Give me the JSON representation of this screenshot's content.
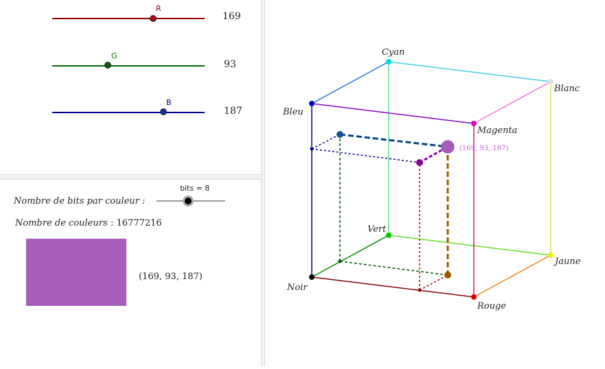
{
  "sliders": [
    {
      "letter": "R",
      "value": "169",
      "color": "#990000",
      "fraction": 0.663
    },
    {
      "letter": "G",
      "value": "93",
      "color": "#006600",
      "fraction": 0.365
    },
    {
      "letter": "B",
      "value": "187",
      "color": "#000099",
      "fraction": 0.733
    }
  ],
  "bits": {
    "label": "bits = 8",
    "caption": "Nombre de bits par couleur :",
    "value": 8
  },
  "colors_count": {
    "caption": "Nombre de couleurs",
    "value": ":  16777216"
  },
  "swatch": {
    "color": "#a95dbb",
    "label": "(169, 93, 187)"
  },
  "cube": {
    "labels": {
      "cyan": "Cyan",
      "blanc": "Blanc",
      "bleu": "Bleu",
      "magenta": "Magenta",
      "vert": "Vert",
      "jaune": "Jaune",
      "noir": "Noir",
      "rouge": "Rouge"
    },
    "point_label": "(169, 93, 187)",
    "colors": {
      "cyan": "#00e5ee",
      "blanc": "#dddddd",
      "bleu": "#0000cc",
      "magenta": "#e000c0",
      "vert": "#00cc00",
      "jaune": "#eeee00",
      "noir": "#000000",
      "rouge": "#e00000",
      "point": "#a95dbb"
    }
  }
}
